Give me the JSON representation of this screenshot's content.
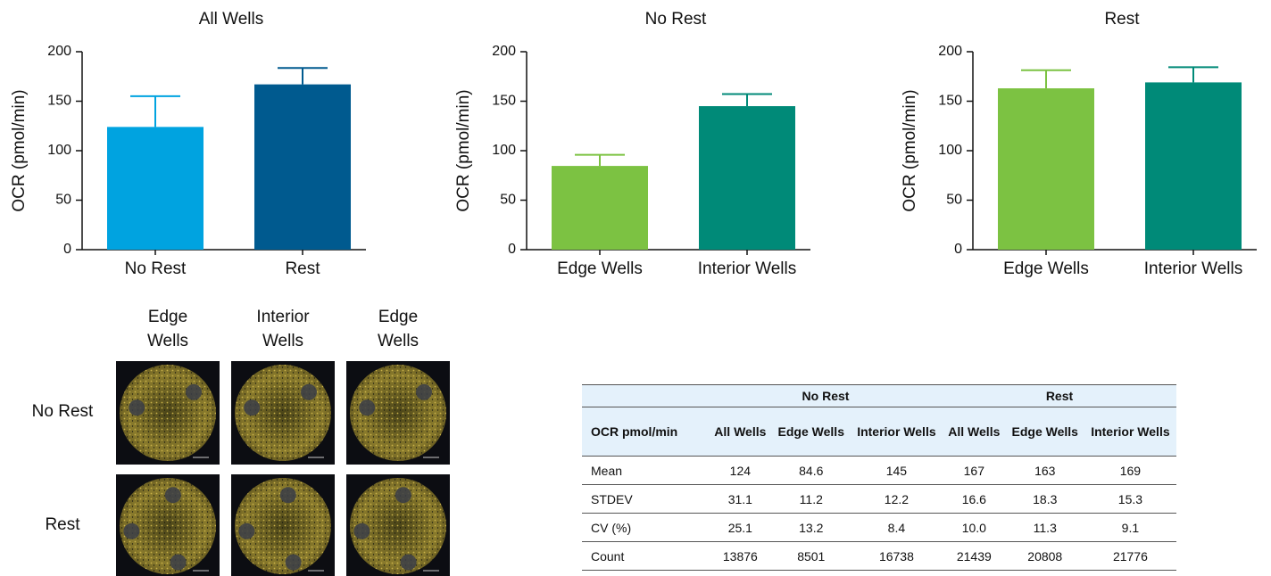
{
  "chart_data": [
    {
      "type": "bar",
      "title": "All Wells",
      "y_label": "OCR (pmol/min)",
      "categories": [
        "No Rest",
        "Rest"
      ],
      "values": [
        124,
        167
      ],
      "errors": [
        31.1,
        16.6
      ],
      "colors": [
        "#00a3e0",
        "#005a8f"
      ],
      "ylim": [
        0,
        200
      ],
      "yticks": [
        0,
        50,
        100,
        150,
        200
      ]
    },
    {
      "type": "bar",
      "title": "No Rest",
      "y_label": "OCR (pmol/min)",
      "categories": [
        "Edge Wells",
        "Interior Wells"
      ],
      "values": [
        84.6,
        145
      ],
      "errors": [
        11.2,
        12.2
      ],
      "colors": [
        "#7cc242",
        "#008a78"
      ],
      "ylim": [
        0,
        200
      ],
      "yticks": [
        0,
        50,
        100,
        150,
        200
      ]
    },
    {
      "type": "bar",
      "title": "Rest",
      "y_label": "OCR (pmol/min)",
      "categories": [
        "Edge Wells",
        "Interior Wells"
      ],
      "values": [
        163,
        169
      ],
      "errors": [
        18.3,
        15.3
      ],
      "colors": [
        "#7cc242",
        "#008a78"
      ],
      "ylim": [
        0,
        200
      ],
      "yticks": [
        0,
        50,
        100,
        150,
        200
      ]
    }
  ],
  "image_grid": {
    "columns": [
      "Edge Wells",
      "Interior Wells",
      "Edge Wells"
    ],
    "rows": [
      "No Rest",
      "Rest"
    ]
  },
  "table": {
    "corner": "OCR pmol/min",
    "groups": [
      "No Rest",
      "Rest"
    ],
    "columns": [
      "All Wells",
      "Edge Wells",
      "Interior Wells",
      "All Wells",
      "Edge Wells",
      "Interior Wells"
    ],
    "rows": [
      [
        "Mean",
        "124",
        "84.6",
        "145",
        "167",
        "163",
        "169"
      ],
      [
        "STDEV",
        "31.1",
        "11.2",
        "12.2",
        "16.6",
        "18.3",
        "15.3"
      ],
      [
        "CV (%)",
        "25.1",
        "13.2",
        "8.4",
        "10.0",
        "11.3",
        "9.1"
      ],
      [
        "Count",
        "13876",
        "8501",
        "16738",
        "21439",
        "20808",
        "21776"
      ]
    ]
  }
}
